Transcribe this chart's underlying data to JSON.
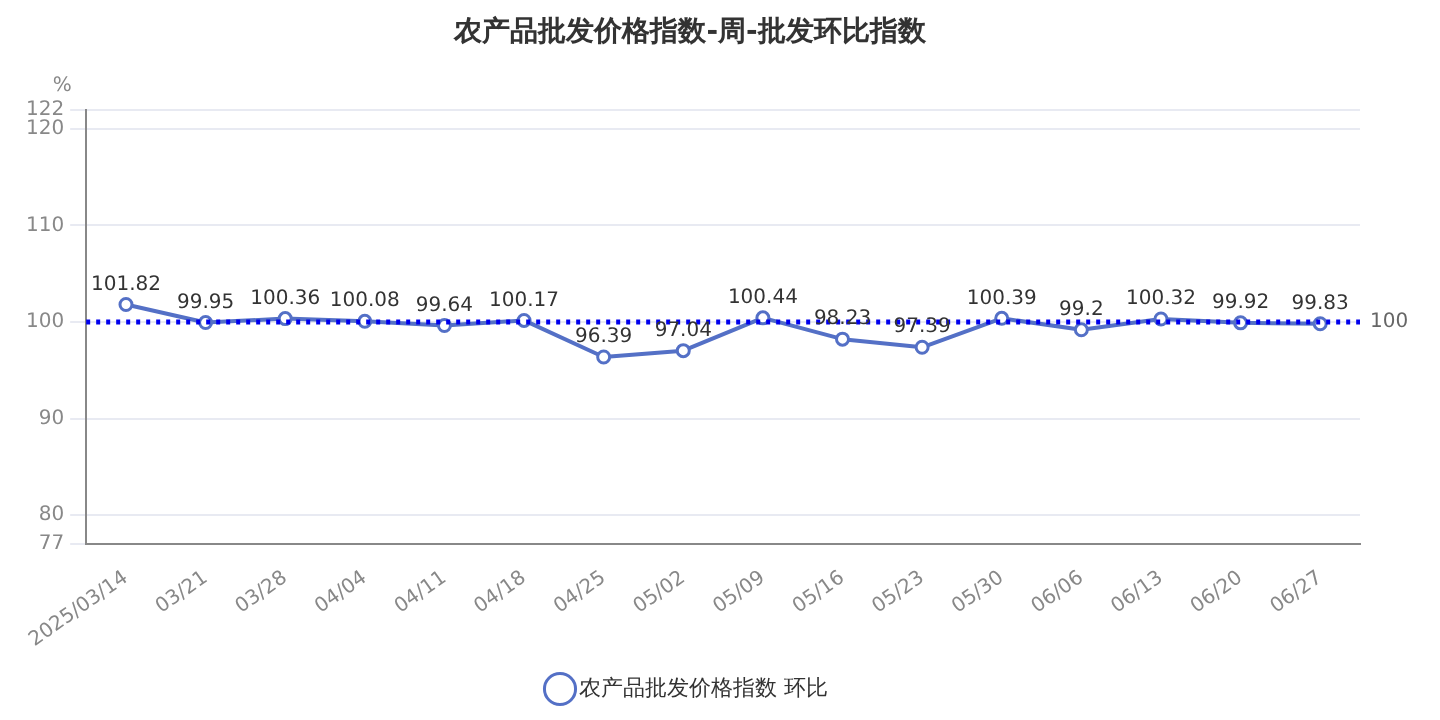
{
  "chart_data": {
    "type": "line",
    "title": "农产品批发价格指数-周-批发环比指数",
    "ylabel": "%",
    "categories": [
      "2025/03/14",
      "03/21",
      "03/28",
      "04/04",
      "04/11",
      "04/18",
      "04/25",
      "05/02",
      "05/09",
      "05/16",
      "05/23",
      "05/30",
      "06/06",
      "06/13",
      "06/20",
      "06/27"
    ],
    "series": [
      {
        "name": "农产品批发价格指数 环比",
        "color": "#5470c6",
        "values": [
          101.82,
          99.95,
          100.36,
          100.08,
          99.64,
          100.17,
          96.39,
          97.04,
          100.44,
          98.23,
          97.39,
          100.39,
          99.2,
          100.32,
          99.92,
          99.83
        ]
      }
    ],
    "ylim": [
      77,
      122
    ],
    "yticks": [
      77,
      80,
      90,
      100,
      110,
      120,
      122
    ],
    "ref_lines": [
      {
        "axis": "y",
        "value": 100,
        "label": "100",
        "color": "#0000ee",
        "line_style": "dotted"
      }
    ],
    "data_labels": true,
    "grid": "y",
    "legend": "bottom",
    "marker": "circle",
    "line_style": "solid"
  }
}
